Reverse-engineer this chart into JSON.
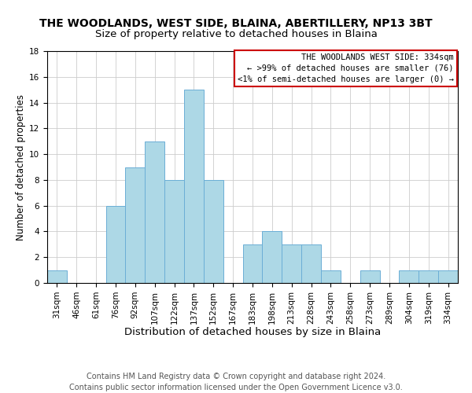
{
  "title": "THE WOODLANDS, WEST SIDE, BLAINA, ABERTILLERY, NP13 3BT",
  "subtitle": "Size of property relative to detached houses in Blaina",
  "xlabel": "Distribution of detached houses by size in Blaina",
  "ylabel": "Number of detached properties",
  "bar_color": "#add8e6",
  "bar_edge_color": "#6baed6",
  "bin_labels": [
    "31sqm",
    "46sqm",
    "61sqm",
    "76sqm",
    "92sqm",
    "107sqm",
    "122sqm",
    "137sqm",
    "152sqm",
    "167sqm",
    "183sqm",
    "198sqm",
    "213sqm",
    "228sqm",
    "243sqm",
    "258sqm",
    "273sqm",
    "289sqm",
    "304sqm",
    "319sqm",
    "334sqm"
  ],
  "values": [
    1,
    0,
    0,
    6,
    9,
    11,
    8,
    15,
    8,
    0,
    3,
    4,
    3,
    3,
    1,
    0,
    1,
    0,
    1,
    1,
    1
  ],
  "ylim": [
    0,
    18
  ],
  "yticks": [
    0,
    2,
    4,
    6,
    8,
    10,
    12,
    14,
    16,
    18
  ],
  "annotation_box_text": "THE WOODLANDS WEST SIDE: 334sqm\n← >99% of detached houses are smaller (76)\n<1% of semi-detached houses are larger (0) →",
  "annotation_box_color": "#ffffff",
  "annotation_box_edge_color": "#cc0000",
  "footer_line1": "Contains HM Land Registry data © Crown copyright and database right 2024.",
  "footer_line2": "Contains public sector information licensed under the Open Government Licence v3.0.",
  "title_fontsize": 10,
  "subtitle_fontsize": 9.5,
  "xlabel_fontsize": 9.5,
  "ylabel_fontsize": 8.5,
  "tick_fontsize": 7.5,
  "annotation_fontsize": 7.5,
  "footer_fontsize": 7
}
